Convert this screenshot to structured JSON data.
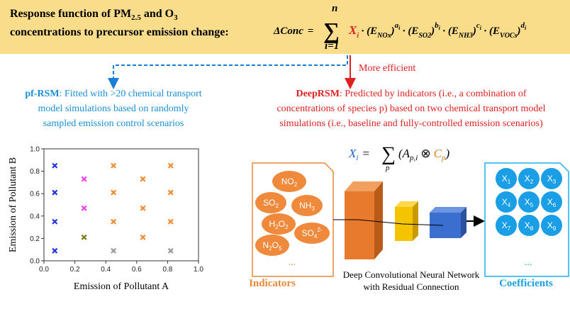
{
  "header": {
    "title_parts": [
      "Response function of PM",
      "2.5",
      " and O",
      "3"
    ],
    "title_line2": "concentrations to precursor emission change:",
    "formula": [
      "ΔConc",
      "=",
      "∑",
      "n",
      "i=1",
      "X",
      "i",
      "·",
      "(E",
      "NOx",
      ")",
      "a",
      "i",
      "·",
      "(E",
      "SO2",
      ")",
      "b",
      "i",
      "·",
      "(E",
      "NH3",
      ")",
      "c",
      "i",
      "·",
      "(E",
      "VOCs",
      ")",
      "d",
      "i"
    ]
  },
  "arrow_label": "More efficient",
  "pf_rsm": {
    "name": "pf-RSM",
    "lines": [
      ": Fitted with >20 chemical transport",
      "model simulations based on randomly",
      "sampled emission control scenarios"
    ]
  },
  "deep_rsm": {
    "name": "DeepRSM",
    "lines": [
      ": Predicted by indicators (i.e., a combination of",
      "concentrations of species p) based on two chemical transport model",
      "simulations (i.e., baseline and fully-controlled emission scenarios)"
    ],
    "formula": [
      "X",
      "i",
      "=",
      "∑",
      "p",
      "(A",
      "p,i",
      "⊗",
      "C",
      "p",
      ")"
    ]
  },
  "indicators": {
    "label": "Indicators",
    "items": [
      [
        "NO",
        "2"
      ],
      [
        "SO",
        "2"
      ],
      [
        "NH",
        "3"
      ],
      [
        "H",
        "2",
        "O",
        "2"
      ],
      [
        "SO",
        "4",
        "2-"
      ],
      [
        "N",
        "2",
        "O",
        "5"
      ]
    ],
    "more": "..."
  },
  "network": {
    "lines": [
      "Deep Convolutional Neural Network",
      "with Residual Connection"
    ]
  },
  "coefficients": {
    "label": "Coefficients",
    "items": [
      [
        "X",
        "1"
      ],
      [
        "X",
        "2"
      ],
      [
        "X",
        "3"
      ],
      [
        "X",
        "4"
      ],
      [
        "X",
        "5"
      ],
      [
        "X",
        "6"
      ],
      [
        "X",
        "7"
      ],
      [
        "X",
        "8"
      ],
      [
        "X",
        "9"
      ]
    ],
    "more": "..."
  },
  "chart_data": {
    "type": "scatter",
    "xlabel": "Emission of Pollutant A",
    "ylabel": "Emission of Pollutant B",
    "xlim": [
      0,
      1
    ],
    "ylim": [
      0,
      1
    ],
    "xticks": [
      {
        "value": 0,
        "label": "0.0"
      },
      {
        "value": 0.2,
        "label": "0.2"
      },
      {
        "value": 0.4,
        "label": "0.4"
      },
      {
        "value": 0.6,
        "label": "0.6"
      },
      {
        "value": 0.8,
        "label": "0.8"
      },
      {
        "value": 1,
        "label": "1.0"
      }
    ],
    "yticks": [
      {
        "value": 0,
        "label": "0.0"
      },
      {
        "value": 0.2,
        "label": "0.2"
      },
      {
        "value": 0.4,
        "label": "0.4"
      },
      {
        "value": 0.6,
        "label": "0.6"
      },
      {
        "value": 0.8,
        "label": "0.8"
      },
      {
        "value": 1,
        "label": "1.0"
      }
    ],
    "series": [
      {
        "color": "#2233dd",
        "x": [
          0.07,
          0.07,
          0.07,
          0.07
        ],
        "values": [
          0.85,
          0.61,
          0.35,
          0.09
        ]
      },
      {
        "color": "#f03cf0",
        "x": [
          0.26,
          0.26
        ],
        "values": [
          0.73,
          0.47
        ]
      },
      {
        "color": "#7a7a10",
        "x": [
          0.26
        ],
        "values": [
          0.21
        ]
      },
      {
        "color": "#f08a30",
        "x": [
          0.45,
          0.45,
          0.45,
          0.64,
          0.64,
          0.64,
          0.82,
          0.82,
          0.82
        ],
        "values": [
          0.85,
          0.61,
          0.35,
          0.73,
          0.47,
          0.21,
          0.85,
          0.61,
          0.35
        ]
      },
      {
        "color": "#999999",
        "x": [
          0.45,
          0.82
        ],
        "values": [
          0.09,
          0.09
        ]
      }
    ]
  }
}
